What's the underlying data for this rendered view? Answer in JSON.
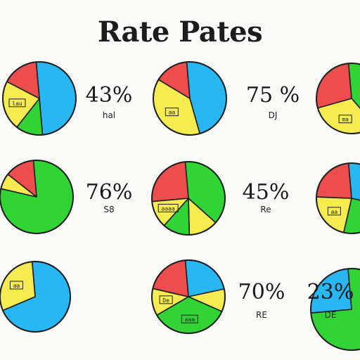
{
  "title": "Rate Pates",
  "colors": {
    "red": "#ee4d4d",
    "yellow": "#f6ec52",
    "green": "#30d535",
    "blue": "#29b7f4",
    "outline": "#1e1e1e"
  },
  "chart_data": [
    {
      "type": "pie",
      "percent_label": "43%",
      "caption": "hal",
      "slices": [
        {
          "color": "blue",
          "value": 50
        },
        {
          "color": "green",
          "value": 12
        },
        {
          "color": "yellow",
          "value": 22
        },
        {
          "color": "red",
          "value": 16
        }
      ],
      "slice_labels": [
        {
          "slice": 2,
          "text": "lau"
        }
      ]
    },
    {
      "type": "pie",
      "percent_label": "75 %",
      "caption": "DJ",
      "slices": [
        {
          "color": "blue",
          "value": 47
        },
        {
          "color": "yellow",
          "value": 38
        },
        {
          "color": "red",
          "value": 15
        }
      ],
      "slice_labels": [
        {
          "slice": 1,
          "text": "aa"
        }
      ]
    },
    {
      "type": "pie",
      "percent_label": "",
      "caption": "",
      "slices": [
        {
          "color": "green",
          "value": 40
        },
        {
          "color": "yellow",
          "value": 32
        },
        {
          "color": "red",
          "value": 28
        }
      ],
      "slice_labels": [
        {
          "slice": 1,
          "text": "ma"
        }
      ]
    },
    {
      "type": "pie",
      "percent_label": "76%",
      "caption": "S8",
      "slices": [
        {
          "color": "green",
          "value": 80
        },
        {
          "color": "yellow",
          "value": 7
        },
        {
          "color": "red",
          "value": 13
        }
      ],
      "slice_labels": []
    },
    {
      "type": "pie",
      "percent_label": "45%",
      "caption": "Re",
      "slices": [
        {
          "color": "green",
          "value": 38
        },
        {
          "color": "yellow",
          "value": 13
        },
        {
          "color": "green",
          "value": 12
        },
        {
          "color": "yellow",
          "value": 12
        },
        {
          "color": "red",
          "value": 25
        }
      ],
      "slice_labels": [
        {
          "slice": 3,
          "text": "aaaa"
        }
      ]
    },
    {
      "type": "pie",
      "percent_label": "",
      "caption": "",
      "slices": [
        {
          "color": "blue",
          "value": 30
        },
        {
          "color": "green",
          "value": 25
        },
        {
          "color": "yellow",
          "value": 22
        },
        {
          "color": "red",
          "value": 23
        }
      ],
      "slice_labels": [
        {
          "slice": 2,
          "text": "aa"
        }
      ]
    },
    {
      "type": "pie",
      "percent_label": "",
      "caption": "",
      "slices": [
        {
          "color": "blue",
          "value": 70
        },
        {
          "color": "yellow",
          "value": 30
        }
      ],
      "slice_labels": [
        {
          "slice": 1,
          "text": "aa"
        }
      ]
    },
    {
      "type": "pie",
      "percent_label": "70%",
      "caption": "RE",
      "slices": [
        {
          "color": "blue",
          "value": 23
        },
        {
          "color": "yellow",
          "value": 10
        },
        {
          "color": "green",
          "value": 35
        },
        {
          "color": "yellow",
          "value": 12
        },
        {
          "color": "red",
          "value": 20
        }
      ],
      "slice_labels": [
        {
          "slice": 2,
          "text": "aaa"
        },
        {
          "slice": 3,
          "text": "De"
        }
      ]
    },
    {
      "type": "pie",
      "percent_label": "23%",
      "caption": "DE",
      "slices": [
        {
          "color": "green",
          "value": 75
        },
        {
          "color": "blue",
          "value": 25
        }
      ],
      "slice_labels": []
    }
  ]
}
